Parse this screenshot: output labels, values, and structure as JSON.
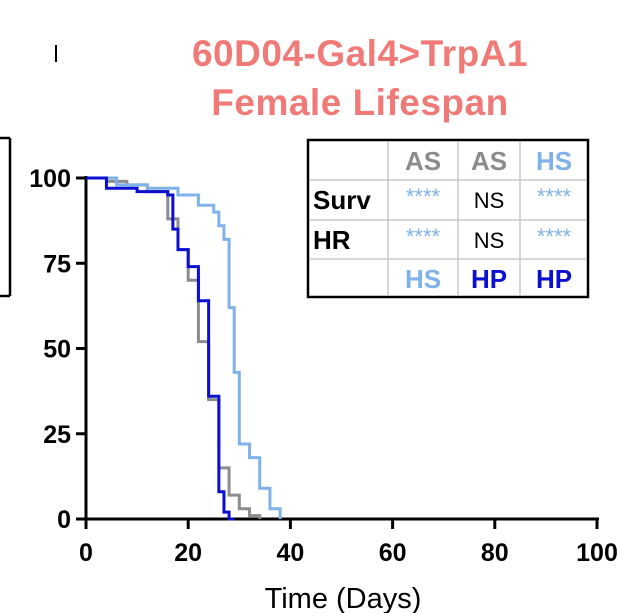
{
  "chart_data": {
    "type": "line",
    "title": [
      "60D04-Gal4>TrpA1",
      "Female Lifespan"
    ],
    "xlabel": "Time (Days)",
    "ylabel": "",
    "xlim": [
      0,
      100
    ],
    "ylim": [
      0,
      100
    ],
    "x_ticks": [
      "0",
      "20",
      "40",
      "60",
      "80",
      "100"
    ],
    "y_ticks": [
      "0",
      "25",
      "50",
      "75",
      "100"
    ],
    "grid": false,
    "colors": {
      "title": "#f07a78",
      "AS": "#8c8c8c",
      "HS": "#7fb2ea",
      "HP": "#0a0fd0",
      "axis": "#000000"
    },
    "series": [
      {
        "key": "AS",
        "color": "#8c8c8c",
        "x": [
          0,
          4,
          8,
          12,
          16,
          18,
          20,
          22,
          24,
          26,
          28,
          30,
          32,
          34
        ],
        "y": [
          100,
          99,
          98,
          96,
          88,
          79,
          70,
          52,
          35,
          15,
          7,
          3,
          1,
          0
        ]
      },
      {
        "key": "HS",
        "color": "#7fb2ea",
        "x": [
          0,
          6,
          12,
          18,
          22,
          25,
          26,
          27,
          28,
          29,
          30,
          32,
          34,
          36,
          38
        ],
        "y": [
          100,
          98,
          97,
          95,
          92,
          90,
          86,
          82,
          62,
          43,
          22,
          18,
          9,
          3,
          0
        ]
      },
      {
        "key": "HP",
        "color": "#0a0fd0",
        "x": [
          0,
          4,
          10,
          16,
          17,
          18,
          20,
          22,
          24,
          26,
          27,
          28,
          29
        ],
        "y": [
          100,
          97,
          96,
          95,
          85,
          79,
          74,
          64,
          36,
          8,
          2,
          0,
          0
        ]
      }
    ]
  },
  "table": {
    "header": [
      "AS",
      "AS",
      "HS"
    ],
    "row_labels": [
      "Surv",
      "HR"
    ],
    "rows": [
      [
        "****",
        "NS",
        "****"
      ],
      [
        "****",
        "NS",
        "****"
      ]
    ],
    "footer": [
      "HS",
      "HP",
      "HP"
    ],
    "header_colors": [
      "#8c8c8c",
      "#8c8c8c",
      "#7fb2ea"
    ],
    "footer_colors": [
      "#7fb2ea",
      "#0a0fd0",
      "#0a0fd0"
    ],
    "sig_colors": [
      "#7fb2ea",
      "#000000",
      "#7fb2ea"
    ]
  }
}
